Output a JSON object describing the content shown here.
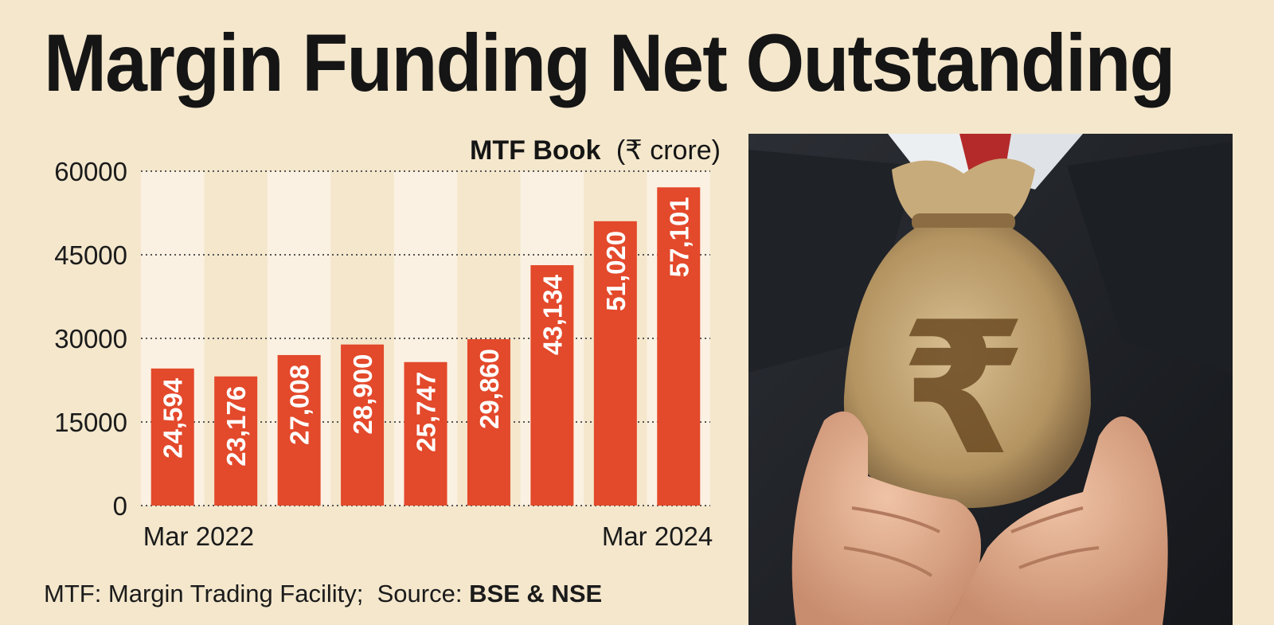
{
  "page": {
    "title": "Margin Funding Net Outstanding",
    "footnote": {
      "definition": "MTF: Margin Trading Facility;",
      "source_label": "Source:",
      "source_value": "BSE & NSE"
    },
    "photo": {
      "subject": "money-bag-with-rupee-symbol-held-in-hands",
      "glyph": "₹"
    }
  },
  "chart_data": {
    "type": "bar",
    "title": "MTF Book",
    "unit_label": "(₹ crore)",
    "categories": [
      "",
      "",
      "",
      "",
      "",
      "",
      "",
      "",
      ""
    ],
    "x_tick_labels": [
      "Mar 2022",
      "Mar 2024"
    ],
    "values": [
      24594,
      23176,
      27008,
      28900,
      25747,
      29860,
      43134,
      51020,
      57101
    ],
    "data_labels": [
      "24,594",
      "23,176",
      "27,008",
      "28,900",
      "25,747",
      "29,860",
      "43,134",
      "51,020",
      "57,101"
    ],
    "ylim": [
      0,
      60000
    ],
    "yticks": [
      0,
      15000,
      30000,
      45000,
      60000
    ],
    "grid": true,
    "colors": {
      "bar": "#e3492b",
      "band": "#fbf1e2",
      "grid": "#555555",
      "background": "#f4e7cc"
    }
  }
}
